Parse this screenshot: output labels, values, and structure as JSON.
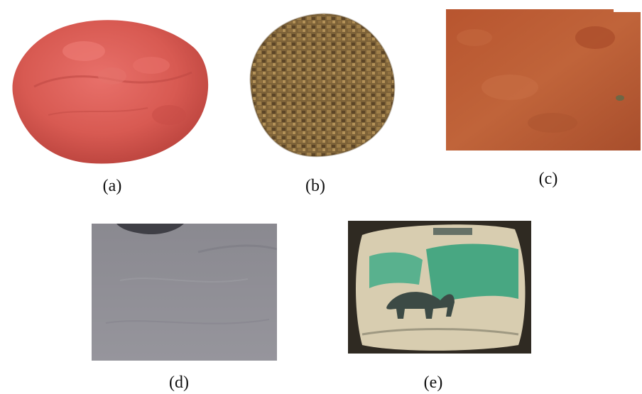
{
  "panels": [
    {
      "id": "a",
      "caption": "(a)",
      "subject": "red-powder-heap"
    },
    {
      "id": "b",
      "caption": "(b)",
      "subject": "gravel-aggregate-heap"
    },
    {
      "id": "c",
      "caption": "(c)",
      "subject": "red-laterite-soil"
    },
    {
      "id": "d",
      "caption": "(d)",
      "subject": "grey-sand"
    },
    {
      "id": "e",
      "caption": "(e)",
      "subject": "cement-bag"
    }
  ],
  "colors": {
    "powder_red": "#d9574f",
    "gravel_brown": "#8a6a3c",
    "laterite": "#b85a34",
    "sand_grey": "#8d8c94",
    "bag_cream": "#d8cdb0",
    "bag_green": "#2fa07a"
  }
}
